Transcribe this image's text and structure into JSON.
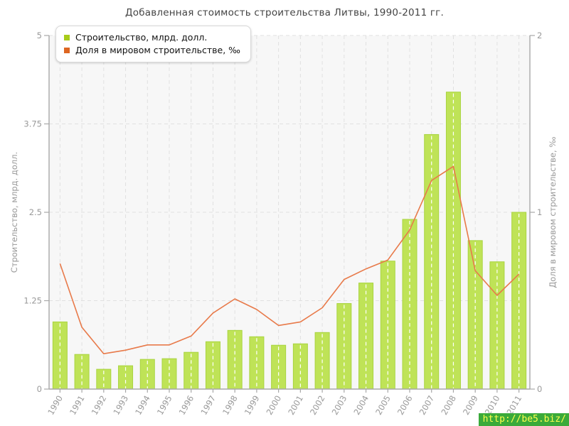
{
  "title": "Добавленная стоимость строительства Литвы, 1990-2011 гг.",
  "legend": [
    {
      "label": "Строительство, млрд. долл.",
      "color": "#a8cc1a"
    },
    {
      "label": "Доля в мировом строительстве, ‰",
      "color": "#dd6622"
    }
  ],
  "watermark": {
    "text": "http://be5.biz/",
    "bg": "#3aaa3a",
    "color": "#ffff4d"
  },
  "chart_data": {
    "type": "bar+line",
    "title": "Добавленная стоимость строительства Литвы, 1990-2011 гг.",
    "categories": [
      "1990",
      "1991",
      "1992",
      "1993",
      "1994",
      "1995",
      "1996",
      "1997",
      "1998",
      "1999",
      "2000",
      "2001",
      "2002",
      "2003",
      "2004",
      "2005",
      "2006",
      "2007",
      "2008",
      "2009",
      "2010",
      "2011"
    ],
    "series": [
      {
        "name": "Строительство, млрд. долл.",
        "type": "bar",
        "axis": "left",
        "color": "#bfe357",
        "edge_color": "#a9d440",
        "values": [
          0.95,
          0.49,
          0.28,
          0.33,
          0.42,
          0.43,
          0.52,
          0.67,
          0.83,
          0.74,
          0.62,
          0.64,
          0.8,
          1.21,
          1.5,
          1.81,
          2.4,
          3.6,
          4.2,
          2.1,
          1.8,
          2.5
        ]
      },
      {
        "name": "Доля в мировом строительстве, ‰",
        "type": "line",
        "axis": "right",
        "color": "#e87a4a",
        "values": [
          0.71,
          0.35,
          0.2,
          0.22,
          0.25,
          0.25,
          0.3,
          0.43,
          0.51,
          0.45,
          0.36,
          0.38,
          0.46,
          0.62,
          0.68,
          0.73,
          0.9,
          1.18,
          1.26,
          0.67,
          0.53,
          0.65
        ]
      }
    ],
    "left_axis": {
      "label": "Строительство, млрд. долл.",
      "range": [
        0,
        5
      ],
      "ticks": [
        0,
        1.25,
        2.5,
        3.75,
        5
      ],
      "tick_labels": [
        "0",
        "1.25",
        "2.5",
        "3.75",
        "5"
      ]
    },
    "right_axis": {
      "label": "Доля в мировом строительстве, ‰",
      "range": [
        0,
        2
      ],
      "ticks": [
        0,
        1,
        2
      ],
      "tick_labels": [
        "0",
        "1",
        "2"
      ]
    },
    "grid": true,
    "legend_position": "top-left",
    "colors": {
      "plot_bg": "#f7f7f7",
      "grid": "#e0e0e0",
      "axis": "#a8a8a8",
      "tick_text": "#999999",
      "bar_center_dash": "#ffffff"
    }
  }
}
